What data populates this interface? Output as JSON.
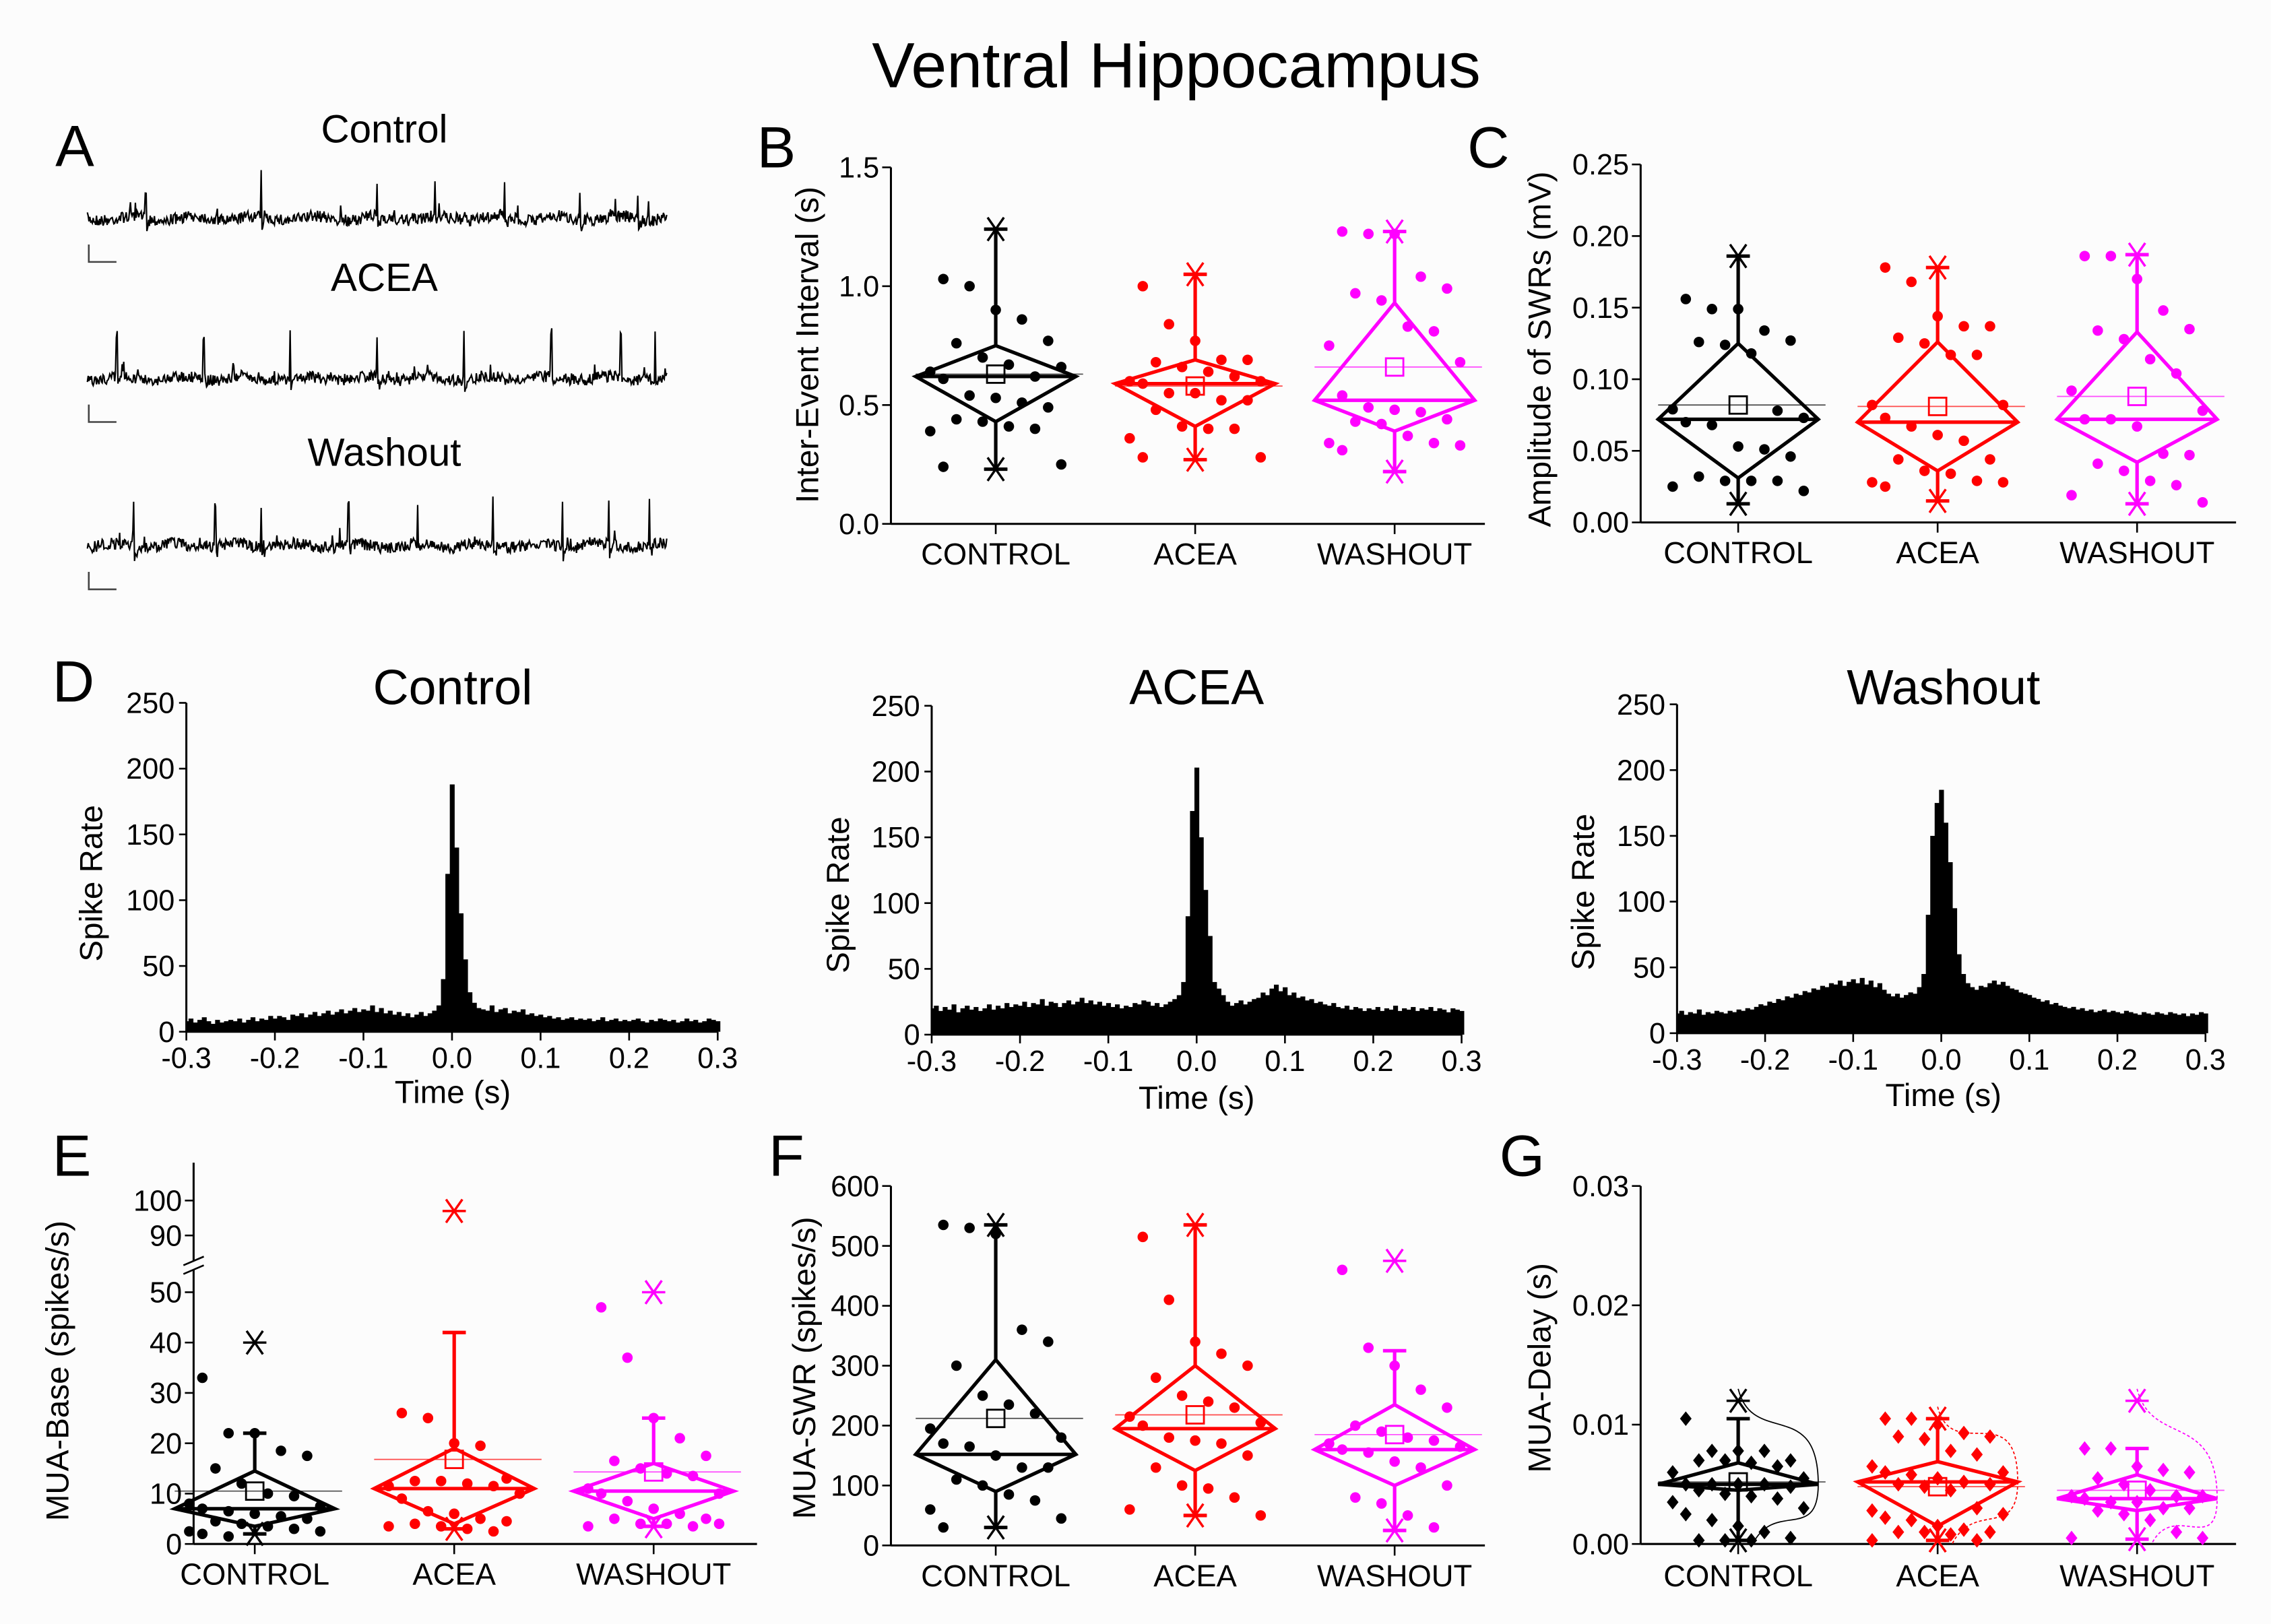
{
  "title": "Ventral Hippocampus",
  "colors": {
    "CONTROL": "#000000",
    "ACEA": "#ff0000",
    "WASHOUT": "#ff00ff"
  },
  "panel_a": {
    "letter": "A",
    "traces": [
      {
        "label": "Control"
      },
      {
        "label": "ACEA"
      },
      {
        "label": "Washout"
      }
    ]
  },
  "chart_data": [
    {
      "id": "B",
      "letter": "B",
      "type": "box",
      "ylabel": "Inter-Event Interval (s)",
      "ylim": [
        0,
        1.5
      ],
      "yticks": [
        "0.0",
        "0.5",
        "1.0",
        "1.5"
      ],
      "ytick_values": [
        0,
        0.5,
        1.0,
        1.5
      ],
      "categories": [
        "CONTROL",
        "ACEA",
        "WASHOUT"
      ],
      "groups": [
        {
          "name": "CONTROL",
          "median": 0.62,
          "mean": 0.63,
          "q1": 0.43,
          "q3": 0.75,
          "whisk_lo": 0.23,
          "whisk_hi": 1.24,
          "min": 0.23,
          "max": 1.24,
          "points": [
            1.03,
            1.0,
            0.9,
            0.86,
            0.77,
            0.76,
            0.7,
            0.67,
            0.62,
            0.64,
            0.66,
            0.61,
            0.54,
            0.53,
            0.51,
            0.49,
            0.44,
            0.43,
            0.41,
            0.4,
            0.39,
            0.25,
            0.24
          ]
        },
        {
          "name": "ACEA",
          "median": 0.59,
          "mean": 0.58,
          "q1": 0.41,
          "q3": 0.69,
          "whisk_lo": 0.27,
          "whisk_hi": 1.05,
          "min": 0.27,
          "max": 1.05,
          "points": [
            1.0,
            0.84,
            0.77,
            0.69,
            0.69,
            0.68,
            0.66,
            0.64,
            0.62,
            0.6,
            0.6,
            0.59,
            0.55,
            0.55,
            0.52,
            0.52,
            0.48,
            0.41,
            0.4,
            0.4,
            0.36,
            0.28,
            0.28
          ]
        },
        {
          "name": "WASHOUT",
          "median": 0.52,
          "mean": 0.66,
          "q1": 0.39,
          "q3": 0.93,
          "whisk_lo": 0.22,
          "whisk_hi": 1.23,
          "min": 0.22,
          "max": 1.23,
          "points": [
            1.23,
            1.22,
            1.22,
            1.04,
            0.99,
            0.97,
            0.94,
            0.83,
            0.81,
            0.75,
            0.68,
            0.54,
            0.49,
            0.48,
            0.47,
            0.44,
            0.43,
            0.42,
            0.37,
            0.34,
            0.34,
            0.33,
            0.31
          ]
        }
      ]
    },
    {
      "id": "C",
      "letter": "C",
      "type": "box",
      "ylabel": "Amplitude of SWRs (mV)",
      "ylim": [
        0,
        0.25
      ],
      "yticks": [
        "0.00",
        "0.05",
        "0.10",
        "0.15",
        "0.20",
        "0.25"
      ],
      "ytick_values": [
        0,
        0.05,
        0.1,
        0.15,
        0.2,
        0.25
      ],
      "categories": [
        "CONTROL",
        "ACEA",
        "WASHOUT"
      ],
      "groups": [
        {
          "name": "CONTROL",
          "median": 0.072,
          "mean": 0.082,
          "q1": 0.031,
          "q3": 0.125,
          "whisk_lo": 0.013,
          "whisk_hi": 0.186,
          "min": 0.013,
          "max": 0.186,
          "points": [
            0.156,
            0.149,
            0.149,
            0.134,
            0.127,
            0.126,
            0.124,
            0.118,
            0.078,
            0.079,
            0.073,
            0.07,
            0.068,
            0.053,
            0.051,
            0.046,
            0.032,
            0.029,
            0.029,
            0.029,
            0.025,
            0.022
          ]
        },
        {
          "name": "ACEA",
          "median": 0.07,
          "mean": 0.081,
          "q1": 0.036,
          "q3": 0.126,
          "whisk_lo": 0.015,
          "whisk_hi": 0.178,
          "min": 0.015,
          "max": 0.178,
          "points": [
            0.178,
            0.168,
            0.144,
            0.137,
            0.137,
            0.129,
            0.125,
            0.117,
            0.117,
            0.082,
            0.082,
            0.073,
            0.067,
            0.061,
            0.057,
            0.044,
            0.044,
            0.036,
            0.034,
            0.029,
            0.028,
            0.028,
            0.025
          ]
        },
        {
          "name": "WASHOUT",
          "median": 0.072,
          "mean": 0.088,
          "q1": 0.042,
          "q3": 0.133,
          "whisk_lo": 0.013,
          "whisk_hi": 0.187,
          "min": 0.013,
          "max": 0.187,
          "points": [
            0.186,
            0.186,
            0.17,
            0.148,
            0.135,
            0.134,
            0.128,
            0.114,
            0.104,
            0.092,
            0.078,
            0.072,
            0.072,
            0.067,
            0.048,
            0.047,
            0.041,
            0.036,
            0.029,
            0.026,
            0.019,
            0.014
          ]
        }
      ]
    },
    {
      "id": "D1",
      "letter": "D",
      "type": "bar",
      "title": "Control",
      "xlabel": "Time (s)",
      "ylabel": "Spike Rate",
      "xlim": [
        -0.3,
        0.3
      ],
      "ylim": [
        0,
        250
      ],
      "xticks": [
        "-0.3",
        "-0.2",
        "-0.1",
        "0.0",
        "0.1",
        "0.2",
        "0.3"
      ],
      "yticks": [
        "0",
        "50",
        "100",
        "150",
        "200",
        "250"
      ],
      "bin_start": -0.3,
      "bin_width": 0.005,
      "values": [
        8,
        10,
        7,
        9,
        11,
        8,
        6,
        9,
        7,
        8,
        9,
        8,
        10,
        7,
        9,
        11,
        8,
        10,
        9,
        12,
        10,
        12,
        11,
        9,
        13,
        12,
        14,
        11,
        13,
        15,
        12,
        14,
        16,
        13,
        15,
        17,
        14,
        16,
        18,
        15,
        17,
        16,
        20,
        15,
        18,
        14,
        16,
        13,
        15,
        12,
        14,
        11,
        13,
        15,
        12,
        14,
        16,
        20,
        40,
        120,
        188,
        140,
        90,
        55,
        30,
        22,
        18,
        17,
        16,
        20,
        15,
        17,
        18,
        14,
        16,
        15,
        17,
        13,
        14,
        12,
        13,
        11,
        12,
        10,
        11,
        9,
        10,
        11,
        9,
        10,
        9,
        10,
        8,
        9,
        11,
        8,
        9,
        10,
        8,
        9,
        8,
        9,
        10,
        8,
        7,
        9,
        8,
        10,
        9,
        8,
        9,
        7,
        8,
        10,
        8,
        9,
        7,
        8,
        10,
        9,
        8
      ]
    },
    {
      "id": "D2",
      "letter": "",
      "type": "bar",
      "title": "ACEA",
      "xlabel": "Time (s)",
      "ylabel": "Spike Rate",
      "xlim": [
        -0.3,
        0.3
      ],
      "ylim": [
        0,
        250
      ],
      "xticks": [
        "-0.3",
        "-0.2",
        "-0.1",
        "0.0",
        "0.1",
        "0.2",
        "0.3"
      ],
      "yticks": [
        "0",
        "50",
        "100",
        "150",
        "200",
        "250"
      ],
      "bin_start": -0.3,
      "bin_width": 0.005,
      "values": [
        20,
        22,
        18,
        21,
        19,
        23,
        17,
        20,
        22,
        19,
        21,
        18,
        20,
        23,
        19,
        22,
        20,
        24,
        21,
        23,
        22,
        25,
        21,
        24,
        23,
        27,
        22,
        25,
        24,
        21,
        24,
        26,
        23,
        25,
        28,
        24,
        26,
        23,
        25,
        22,
        24,
        21,
        23,
        20,
        22,
        21,
        24,
        23,
        26,
        25,
        22,
        24,
        21,
        23,
        25,
        27,
        30,
        40,
        90,
        170,
        203,
        150,
        110,
        75,
        40,
        35,
        30,
        25,
        22,
        24,
        26,
        23,
        25,
        27,
        28,
        32,
        30,
        35,
        38,
        33,
        36,
        30,
        32,
        28,
        29,
        26,
        27,
        24,
        25,
        23,
        22,
        24,
        21,
        20,
        22,
        19,
        21,
        20,
        18,
        20,
        19,
        21,
        18,
        20,
        19,
        22,
        18,
        20,
        19,
        21,
        18,
        20,
        19,
        21,
        18,
        20,
        19,
        17,
        20,
        19,
        18
      ]
    },
    {
      "id": "D3",
      "letter": "",
      "type": "bar",
      "title": "Washout",
      "xlabel": "Time (s)",
      "ylabel": "Spike Rate",
      "xlim": [
        -0.3,
        0.3
      ],
      "ylim": [
        0,
        250
      ],
      "xticks": [
        "-0.3",
        "-0.2",
        "-0.1",
        "0.0",
        "0.1",
        "0.2",
        "0.3"
      ],
      "yticks": [
        "0",
        "50",
        "100",
        "150",
        "200",
        "250"
      ],
      "bin_start": -0.3,
      "bin_width": 0.005,
      "values": [
        15,
        17,
        14,
        16,
        15,
        18,
        14,
        16,
        15,
        17,
        16,
        15,
        17,
        16,
        18,
        17,
        19,
        18,
        20,
        22,
        21,
        24,
        23,
        26,
        25,
        28,
        27,
        30,
        29,
        32,
        31,
        34,
        33,
        36,
        35,
        38,
        37,
        40,
        36,
        39,
        41,
        38,
        42,
        37,
        40,
        35,
        38,
        33,
        30,
        28,
        30,
        27,
        29,
        31,
        30,
        35,
        45,
        90,
        150,
        175,
        185,
        160,
        130,
        95,
        60,
        45,
        38,
        35,
        33,
        36,
        35,
        38,
        40,
        37,
        39,
        36,
        34,
        33,
        31,
        30,
        29,
        27,
        26,
        24,
        25,
        22,
        23,
        21,
        20,
        19,
        20,
        18,
        19,
        17,
        18,
        16,
        17,
        18,
        16,
        17,
        16,
        15,
        17,
        16,
        15,
        14,
        16,
        15,
        14,
        16,
        15,
        14,
        16,
        15,
        14,
        15,
        13,
        15,
        14,
        16,
        15
      ]
    },
    {
      "id": "E",
      "letter": "E",
      "type": "box",
      "ylabel": "MUA-Base (spikes/s)",
      "ylim": [
        0,
        100
      ],
      "y_break": [
        50,
        90
      ],
      "yticks": [
        "0",
        "10",
        "20",
        "30",
        "40",
        "50",
        "90",
        "100"
      ],
      "ytick_values": [
        0,
        10,
        20,
        30,
        40,
        50,
        90,
        100
      ],
      "categories": [
        "CONTROL",
        "ACEA",
        "WASHOUT"
      ],
      "groups": [
        {
          "name": "CONTROL",
          "median": 7,
          "mean": 10.5,
          "q1": 3.5,
          "q3": 14.5,
          "whisk_lo": 2,
          "whisk_hi": 22,
          "min": 2,
          "max": 40,
          "points": [
            33,
            22,
            22,
            18.5,
            17.5,
            15,
            12,
            10,
            9.5,
            8,
            7.5,
            7,
            6.5,
            6,
            5.5,
            5,
            4.5,
            4,
            3.5,
            3,
            2.5,
            2.5,
            2,
            1.5
          ]
        },
        {
          "name": "ACEA",
          "median": 11,
          "mean": 16.8,
          "q1": 4,
          "q3": 19,
          "whisk_lo": 3,
          "whisk_hi": 42,
          "min": 3,
          "max": 97,
          "points": [
            26,
            25,
            20,
            19.5,
            13,
            12.5,
            12.5,
            12,
            11.5,
            11.5,
            10,
            9,
            6.5,
            6,
            5,
            4.5,
            4,
            3.5,
            3,
            2.5,
            3.5
          ]
        },
        {
          "name": "WASHOUT",
          "median": 10.5,
          "mean": 14.3,
          "q1": 5,
          "q3": 16,
          "whisk_lo": 3.5,
          "whisk_hi": 25,
          "min": 3.5,
          "max": 50,
          "points": [
            47,
            37,
            25,
            21,
            17.5,
            16.5,
            15,
            14,
            13.5,
            11,
            10,
            10,
            8.5,
            7,
            6,
            5,
            5,
            4,
            4,
            3.5,
            3.5,
            4
          ]
        }
      ]
    },
    {
      "id": "F",
      "letter": "F",
      "type": "box",
      "ylabel": "MUA-SWR (spikes/s)",
      "ylim": [
        0,
        600
      ],
      "yticks": [
        "0",
        "100",
        "200",
        "300",
        "400",
        "500",
        "600"
      ],
      "ytick_values": [
        0,
        100,
        200,
        300,
        400,
        500,
        600
      ],
      "categories": [
        "CONTROL",
        "ACEA",
        "WASHOUT"
      ],
      "groups": [
        {
          "name": "CONTROL",
          "median": 152,
          "mean": 212,
          "q1": 90,
          "q3": 310,
          "whisk_lo": 30,
          "whisk_hi": 535,
          "min": 30,
          "max": 535,
          "points": [
            535,
            530,
            520,
            360,
            340,
            300,
            250,
            235,
            220,
            195,
            180,
            170,
            165,
            150,
            130,
            130,
            110,
            100,
            85,
            75,
            60,
            45,
            30
          ]
        },
        {
          "name": "ACEA",
          "median": 195,
          "mean": 218,
          "q1": 125,
          "q3": 300,
          "whisk_lo": 50,
          "whisk_hi": 535,
          "min": 50,
          "max": 535,
          "points": [
            515,
            410,
            340,
            320,
            300,
            280,
            250,
            240,
            230,
            215,
            205,
            200,
            180,
            175,
            170,
            150,
            130,
            100,
            95,
            80,
            60,
            50
          ]
        },
        {
          "name": "WASHOUT",
          "median": 160,
          "mean": 185,
          "q1": 100,
          "q3": 235,
          "whisk_lo": 25,
          "whisk_hi": 325,
          "min": 25,
          "max": 475,
          "points": [
            460,
            330,
            300,
            260,
            230,
            200,
            190,
            180,
            175,
            170,
            165,
            160,
            155,
            140,
            130,
            100,
            80,
            70,
            50,
            30
          ]
        }
      ]
    },
    {
      "id": "G",
      "letter": "G",
      "type": "box",
      "ylabel": "MUA-Delay (s)",
      "ylim": [
        0,
        0.03
      ],
      "violin": true,
      "yticks": [
        "0.00",
        "0.01",
        "0.02",
        "0.03"
      ],
      "ytick_values": [
        0,
        0.01,
        0.02,
        0.03
      ],
      "categories": [
        "CONTROL",
        "ACEA",
        "WASHOUT"
      ],
      "groups": [
        {
          "name": "CONTROL",
          "median": 0.005,
          "mean": 0.0052,
          "q1": 0.0045,
          "q3": 0.0068,
          "whisk_lo": 0.0003,
          "whisk_hi": 0.0105,
          "min": 0.0003,
          "max": 0.012,
          "points": [
            0.0105,
            0.0078,
            0.0078,
            0.0078,
            0.007,
            0.007,
            0.007,
            0.0068,
            0.0065,
            0.006,
            0.0055,
            0.005,
            0.005,
            0.005,
            0.005,
            0.0048,
            0.0045,
            0.0042,
            0.004,
            0.0038,
            0.0035,
            0.003,
            0.0025,
            0.002,
            0.0015,
            0.001,
            0.0005,
            0.0003,
            0.0003,
            0.0003
          ]
        },
        {
          "name": "ACEA",
          "median": 0.0052,
          "mean": 0.0048,
          "q1": 0.0015,
          "q3": 0.0069,
          "whisk_lo": 0.0003,
          "whisk_hi": 0.0105,
          "min": 0.0003,
          "max": 0.0105,
          "points": [
            0.0105,
            0.0105,
            0.01,
            0.0093,
            0.009,
            0.009,
            0.0088,
            0.0078,
            0.0075,
            0.0065,
            0.006,
            0.006,
            0.0058,
            0.0055,
            0.0052,
            0.005,
            0.005,
            0.0048,
            0.0045,
            0.003,
            0.0028,
            0.0025,
            0.0022,
            0.002,
            0.0015,
            0.0012,
            0.001,
            0.001,
            0.001,
            0.0008,
            0.0003,
            0.0003
          ]
        },
        {
          "name": "WASHOUT",
          "median": 0.0038,
          "mean": 0.0045,
          "q1": 0.0028,
          "q3": 0.0058,
          "whisk_lo": 0.0004,
          "whisk_hi": 0.008,
          "min": 0.0004,
          "max": 0.012,
          "points": [
            0.008,
            0.008,
            0.0065,
            0.0062,
            0.006,
            0.0055,
            0.005,
            0.0045,
            0.004,
            0.004,
            0.004,
            0.0038,
            0.0035,
            0.0035,
            0.003,
            0.003,
            0.0028,
            0.0025,
            0.002,
            0.001,
            0.0005,
            0.0005
          ]
        }
      ]
    }
  ]
}
